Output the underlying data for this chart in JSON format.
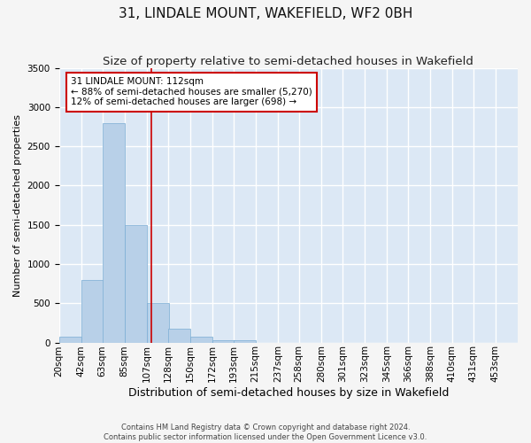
{
  "title": "31, LINDALE MOUNT, WAKEFIELD, WF2 0BH",
  "subtitle": "Size of property relative to semi-detached houses in Wakefield",
  "xlabel": "Distribution of semi-detached houses by size in Wakefield",
  "ylabel": "Number of semi-detached properties",
  "bin_labels": [
    "20sqm",
    "42sqm",
    "63sqm",
    "85sqm",
    "107sqm",
    "128sqm",
    "150sqm",
    "172sqm",
    "193sqm",
    "215sqm",
    "237sqm",
    "258sqm",
    "280sqm",
    "301sqm",
    "323sqm",
    "345sqm",
    "366sqm",
    "388sqm",
    "410sqm",
    "431sqm",
    "453sqm"
  ],
  "bin_edges": [
    20,
    42,
    63,
    85,
    107,
    128,
    150,
    172,
    193,
    215,
    237,
    258,
    280,
    301,
    323,
    345,
    366,
    388,
    410,
    431,
    453
  ],
  "bar_heights": [
    75,
    800,
    2800,
    1500,
    500,
    175,
    75,
    30,
    30,
    0,
    0,
    0,
    0,
    0,
    0,
    0,
    0,
    0,
    0,
    0
  ],
  "bar_color": "#b8d0e8",
  "bar_edge_color": "#7aadd4",
  "vline_x": 112,
  "vline_color": "#cc0000",
  "annotation_text": "31 LINDALE MOUNT: 112sqm\n← 88% of semi-detached houses are smaller (5,270)\n12% of semi-detached houses are larger (698) →",
  "annotation_box_color": "#ffffff",
  "annotation_box_edge": "#cc0000",
  "ylim": [
    0,
    3500
  ],
  "yticks": [
    0,
    500,
    1000,
    1500,
    2000,
    2500,
    3000,
    3500
  ],
  "background_color": "#dce8f5",
  "grid_color": "#ffffff",
  "fig_bg_color": "#f5f5f5",
  "footer_line1": "Contains HM Land Registry data © Crown copyright and database right 2024.",
  "footer_line2": "Contains public sector information licensed under the Open Government Licence v3.0.",
  "title_fontsize": 11,
  "subtitle_fontsize": 9.5,
  "xlabel_fontsize": 9,
  "ylabel_fontsize": 8,
  "tick_fontsize": 7.5,
  "annotation_fontsize": 7.5
}
